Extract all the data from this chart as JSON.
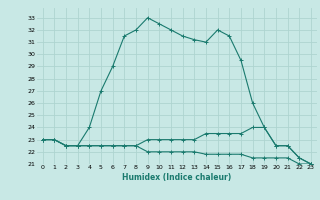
{
  "xlabel": "Humidex (Indice chaleur)",
  "background_color": "#c8e8e5",
  "grid_color": "#aed4d0",
  "line_color": "#1a7a6e",
  "xlim": [
    -0.5,
    23.5
  ],
  "ylim": [
    21,
    33.8
  ],
  "xticks": [
    0,
    1,
    2,
    3,
    4,
    5,
    6,
    7,
    8,
    9,
    10,
    11,
    12,
    13,
    14,
    15,
    16,
    17,
    18,
    19,
    20,
    21,
    22,
    23
  ],
  "yticks": [
    21,
    22,
    23,
    24,
    25,
    26,
    27,
    28,
    29,
    30,
    31,
    32,
    33
  ],
  "line1": [
    23,
    23,
    22.5,
    22.5,
    24,
    27,
    29,
    31.5,
    32,
    33,
    32.5,
    32,
    31.5,
    31.2,
    31,
    32,
    31.5,
    29.5,
    26,
    24,
    22.5,
    22.5,
    21.5,
    21
  ],
  "line2": [
    23,
    23,
    22.5,
    22.5,
    22.5,
    22.5,
    22.5,
    22.5,
    22.5,
    23,
    23,
    23,
    23,
    23,
    23.5,
    23.5,
    23.5,
    23.5,
    24,
    24,
    22.5,
    22.5,
    21.5,
    21
  ],
  "line3": [
    23,
    23,
    22.5,
    22.5,
    22.5,
    22.5,
    22.5,
    22.5,
    22.5,
    22,
    22,
    22,
    22,
    22,
    21.8,
    21.8,
    21.8,
    21.8,
    21.5,
    21.5,
    21.5,
    21.5,
    21,
    21
  ]
}
